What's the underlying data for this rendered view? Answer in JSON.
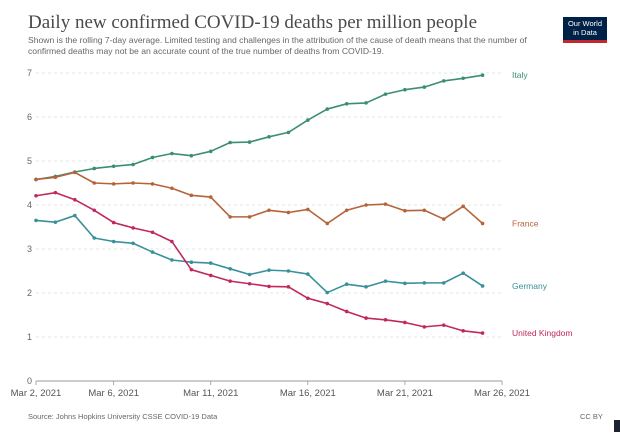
{
  "chart_data": {
    "type": "line",
    "title": "Daily new confirmed COVID-19 deaths per million people",
    "subtitle": "Shown is the rolling 7-day average. Limited testing and challenges in the attribution of the cause of death means that the number of confirmed deaths may not be an accurate count of the true number of deaths from COVID-19.",
    "xlabel": "",
    "ylabel": "",
    "ylim": [
      0,
      7
    ],
    "yticks": [
      0,
      1,
      2,
      3,
      4,
      5,
      6,
      7
    ],
    "x_tick_labels": [
      "Mar 2, 2021",
      "Mar 6, 2021",
      "Mar 11, 2021",
      "Mar 16, 2021",
      "Mar 21, 2021",
      "Mar 26, 2021"
    ],
    "x_tick_days": [
      0,
      4,
      9,
      14,
      19,
      24
    ],
    "x_days": [
      0,
      1,
      2,
      3,
      4,
      5,
      6,
      7,
      8,
      9,
      10,
      11,
      12,
      13,
      14,
      15,
      16,
      17,
      18,
      19,
      20,
      21,
      22,
      23
    ],
    "grid": true,
    "legend": "inline-right",
    "series": [
      {
        "name": "Italy",
        "color": "#3a8f72",
        "values": [
          4.58,
          4.65,
          4.75,
          4.83,
          4.88,
          4.92,
          5.08,
          5.17,
          5.12,
          5.22,
          5.42,
          5.43,
          5.55,
          5.65,
          5.93,
          6.18,
          6.3,
          6.32,
          6.52,
          6.62,
          6.68,
          6.82,
          6.88,
          6.95
        ]
      },
      {
        "name": "France",
        "color": "#b5643a",
        "values": [
          4.58,
          4.63,
          4.74,
          4.5,
          4.48,
          4.5,
          4.48,
          4.38,
          4.22,
          4.18,
          3.73,
          3.73,
          3.88,
          3.83,
          3.9,
          3.58,
          3.88,
          4.0,
          4.02,
          3.87,
          3.88,
          3.68,
          3.97,
          3.58
        ]
      },
      {
        "name": "Germany",
        "color": "#38909b",
        "values": [
          3.65,
          3.61,
          3.76,
          3.25,
          3.17,
          3.13,
          2.93,
          2.75,
          2.7,
          2.68,
          2.55,
          2.42,
          2.52,
          2.5,
          2.43,
          2.01,
          2.2,
          2.14,
          2.27,
          2.22,
          2.23,
          2.23,
          2.45,
          2.16
        ]
      },
      {
        "name": "United Kingdom",
        "color": "#c0285e",
        "values": [
          4.21,
          4.28,
          4.12,
          3.88,
          3.6,
          3.48,
          3.38,
          3.17,
          2.53,
          2.4,
          2.27,
          2.21,
          2.15,
          2.14,
          1.88,
          1.76,
          1.58,
          1.43,
          1.39,
          1.33,
          1.23,
          1.27,
          1.14,
          1.09
        ]
      }
    ]
  },
  "source": "Source: Johns Hopkins University CSSE COVID-19 Data",
  "license": "CC BY",
  "logo": {
    "line1": "Our World",
    "line2": "in Data"
  }
}
